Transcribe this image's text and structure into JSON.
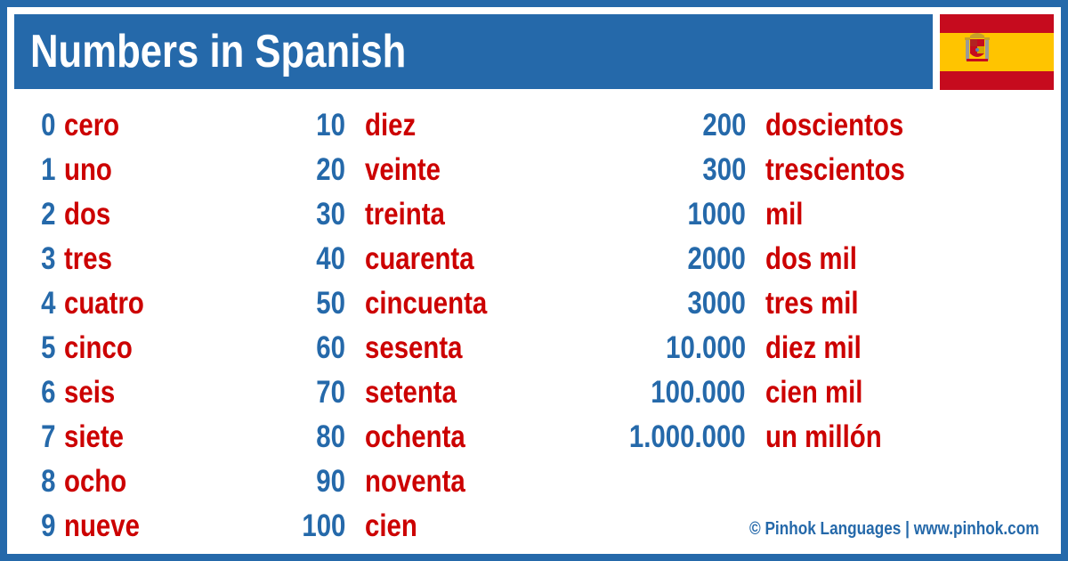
{
  "header": {
    "title": "Numbers in Spanish"
  },
  "flag": {
    "icon": "spain-flag-icon",
    "colors": {
      "red": "#c60b1e",
      "yellow": "#ffc400"
    }
  },
  "columns": [
    [
      {
        "number": "0",
        "word": "cero"
      },
      {
        "number": "1",
        "word": "uno"
      },
      {
        "number": "2",
        "word": "dos"
      },
      {
        "number": "3",
        "word": "tres"
      },
      {
        "number": "4",
        "word": "cuatro"
      },
      {
        "number": "5",
        "word": "cinco"
      },
      {
        "number": "6",
        "word": "seis"
      },
      {
        "number": "7",
        "word": "siete"
      },
      {
        "number": "8",
        "word": "ocho"
      },
      {
        "number": "9",
        "word": "nueve"
      }
    ],
    [
      {
        "number": "10",
        "word": "diez"
      },
      {
        "number": "20",
        "word": "veinte"
      },
      {
        "number": "30",
        "word": "treinta"
      },
      {
        "number": "40",
        "word": "cuarenta"
      },
      {
        "number": "50",
        "word": "cincuenta"
      },
      {
        "number": "60",
        "word": "sesenta"
      },
      {
        "number": "70",
        "word": "setenta"
      },
      {
        "number": "80",
        "word": "ochenta"
      },
      {
        "number": "90",
        "word": "noventa"
      },
      {
        "number": "100",
        "word": "cien"
      }
    ],
    [
      {
        "number": "200",
        "word": "doscientos"
      },
      {
        "number": "300",
        "word": "trescientos"
      },
      {
        "number": "1000",
        "word": "mil"
      },
      {
        "number": "2000",
        "word": "dos mil"
      },
      {
        "number": "3000",
        "word": "tres mil"
      },
      {
        "number": "10.000",
        "word": "diez mil"
      },
      {
        "number": "100.000",
        "word": "cien mil"
      },
      {
        "number": "1.000.000",
        "word": "un millón"
      }
    ]
  ],
  "footer": {
    "text": "© Pinhok Languages | www.pinhok.com"
  },
  "colors": {
    "accent": "#2569aa",
    "word": "#cc0000",
    "background": "#ffffff"
  }
}
